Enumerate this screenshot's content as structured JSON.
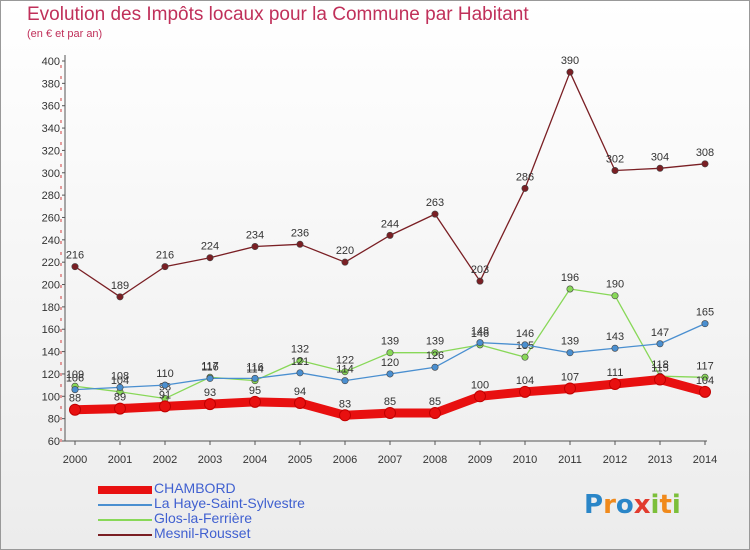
{
  "header": {
    "title": "Evolution des Impôts locaux pour la Commune par Habitant",
    "subtitle": "(en € et par an)"
  },
  "logo": {
    "letters": [
      "P",
      "r",
      "o",
      "x",
      "i",
      "t",
      "i"
    ],
    "colors": [
      "#2a86c8",
      "#f08a1c",
      "#2a86c8",
      "#e23b2e",
      "#7cbf3a",
      "#f08a1c",
      "#7cbf3a"
    ]
  },
  "chart_data": {
    "type": "line",
    "x": [
      2000,
      2001,
      2002,
      2003,
      2004,
      2005,
      2006,
      2007,
      2008,
      2009,
      2010,
      2011,
      2012,
      2013,
      2014
    ],
    "ylim": [
      60,
      400
    ],
    "yticks": [
      60,
      80,
      100,
      120,
      140,
      160,
      180,
      200,
      220,
      240,
      260,
      280,
      300,
      320,
      340,
      360,
      380,
      400
    ],
    "grid": false,
    "legend_position": "bottom-left",
    "series": [
      {
        "name": "CHAMBORD",
        "color": "#e81010",
        "values": [
          88,
          89,
          91,
          93,
          95,
          94,
          83,
          85,
          85,
          100,
          104,
          107,
          111,
          115,
          104
        ],
        "labels": [
          "88",
          "89",
          "91",
          "93",
          "95",
          "94",
          "83",
          "85",
          "85",
          "100",
          "104",
          "107",
          "111",
          "115",
          "104"
        ]
      },
      {
        "name": "La Haye-Saint-Sylvestre",
        "color": "#4a8fd0",
        "values": [
          106,
          108,
          110,
          116,
          116,
          121,
          114,
          120,
          126,
          148,
          146,
          139,
          143,
          147,
          165
        ],
        "labels": [
          "106",
          "108",
          "110",
          "116",
          "116",
          "121",
          "114",
          "120",
          "126",
          "148",
          "146",
          "139",
          "143",
          "147",
          "165"
        ]
      },
      {
        "name": "Glos-la-Ferrière",
        "color": "#88d858",
        "values": [
          109,
          104,
          98,
          117,
          114,
          132,
          122,
          139,
          139,
          146,
          135,
          196,
          190,
          118,
          117
        ],
        "labels": [
          "109",
          "104",
          "98",
          "117",
          "114",
          "132",
          "122",
          "139",
          "139",
          "146",
          "135",
          "196",
          "190",
          "118",
          "117"
        ]
      },
      {
        "name": "Mesnil-Rousset",
        "color": "#7a1f24",
        "values": [
          216,
          189,
          216,
          224,
          234,
          236,
          220,
          244,
          263,
          203,
          286,
          390,
          302,
          304,
          308
        ],
        "labels": [
          "216",
          "189",
          "216",
          "224",
          "234",
          "236",
          "220",
          "244",
          "263",
          "203",
          "286",
          "390",
          "302",
          "304",
          "308"
        ]
      }
    ]
  }
}
